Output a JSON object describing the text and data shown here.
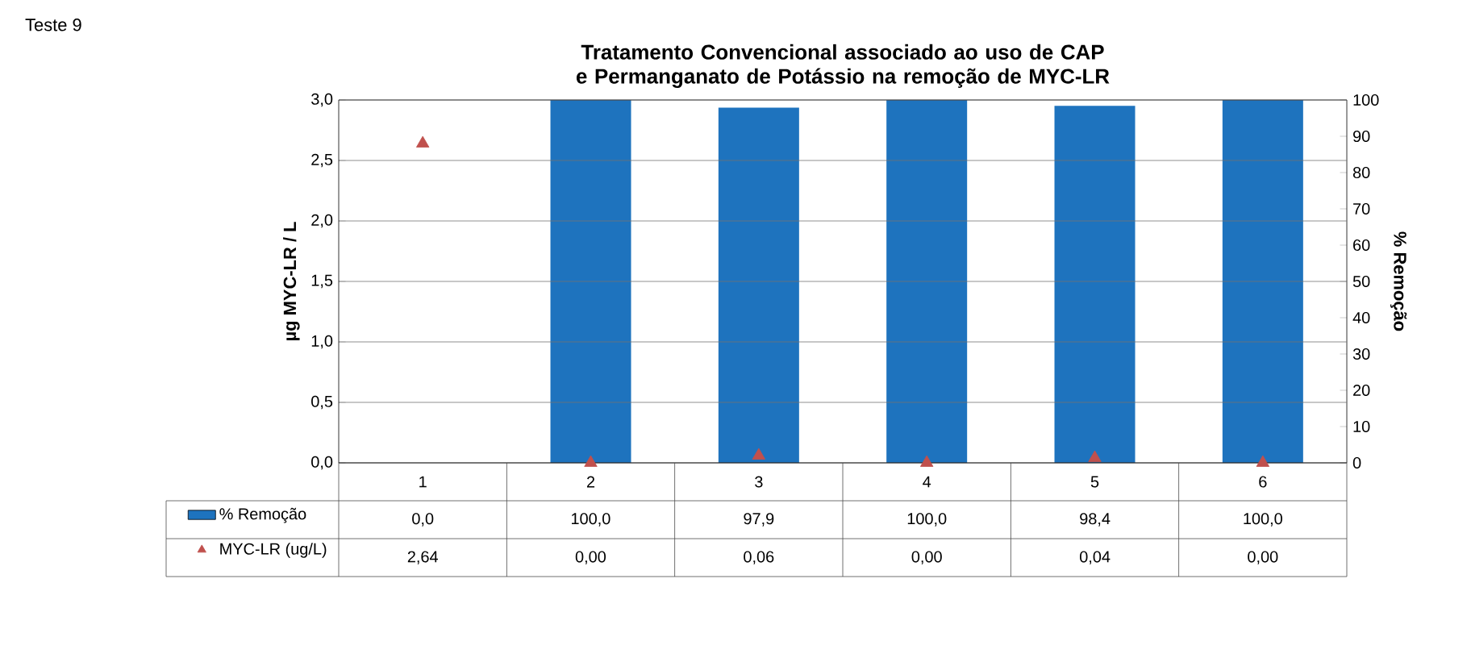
{
  "chart_data": {
    "type": "bar",
    "title": "Tratamento Convencional associado ao uso de CAP e Permanganato de Potássio na remoção de MYC-LR",
    "ylabel": "µg MYC-LR / L",
    "y2label": "% Remoção",
    "annotations": [
      "Teste 9"
    ],
    "categories": [
      "1",
      "2",
      "3",
      "4",
      "5",
      "6"
    ],
    "series": [
      {
        "name": "% Remoção",
        "axis": "y2",
        "color": "#1e73be",
        "values": [
          0,
          100,
          97.9,
          100,
          98.4,
          100
        ],
        "value_labels": [
          "0,0",
          "100,0",
          "97,9",
          "100,0",
          "98,4",
          "100,0"
        ]
      },
      {
        "name": "MYC-LR (ug/L)",
        "type": "scatter",
        "marker": "triangle",
        "color": "#c0504d",
        "values": [
          2.64,
          0,
          0.06,
          0,
          0.04,
          0
        ],
        "value_labels": [
          "2,64",
          "0,00",
          "0,06",
          "0,00",
          "0,04",
          "0,00"
        ]
      }
    ],
    "ylim": [
      0,
      3
    ],
    "yticks": [
      {
        "value": 0,
        "label": "0,0"
      },
      {
        "value": 0.5,
        "label": "0,5"
      },
      {
        "value": 1,
        "label": "1,0"
      },
      {
        "value": 1.5,
        "label": "1,5"
      },
      {
        "value": 2,
        "label": "2,0"
      },
      {
        "value": 2.5,
        "label": "2,5"
      },
      {
        "value": 3,
        "label": "3,0"
      }
    ],
    "y2lim": [
      0,
      100
    ],
    "y2ticks": [
      0,
      10,
      20,
      30,
      40,
      50,
      60,
      70,
      80,
      90,
      100
    ],
    "grid": "y",
    "legend": "bottom"
  }
}
